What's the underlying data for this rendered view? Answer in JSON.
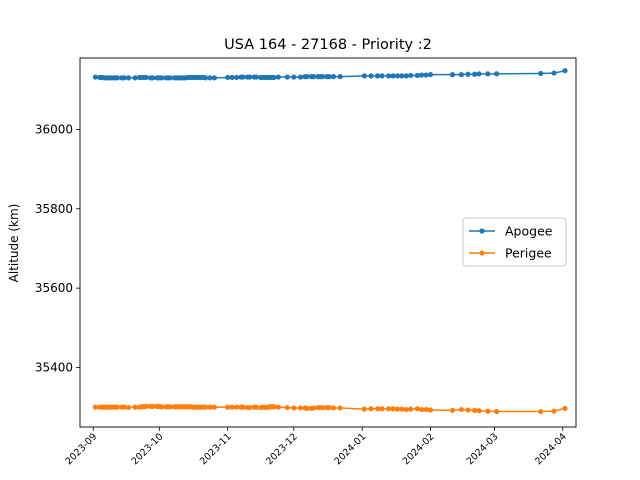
{
  "chart_data": {
    "type": "line",
    "title": "USA 164 - 27168 - Priority :2",
    "xlabel": "",
    "ylabel": "Altitude (km)",
    "xlim": [
      "2023-08-26",
      "2024-04-07"
    ],
    "ylim": [
      35250,
      36180
    ],
    "x_ticks": [
      "2023-09",
      "2023-10",
      "2023-11",
      "2023-12",
      "2024-01",
      "2024-02",
      "2024-03",
      "2024-04"
    ],
    "y_ticks": [
      35400,
      35600,
      35800,
      36000
    ],
    "grid": false,
    "legend_position": "center-right",
    "series": [
      {
        "name": "Apogee",
        "color": "#1f77b4",
        "points": [
          [
            "2023-09-02",
            36132
          ],
          [
            "2023-09-04",
            36131
          ],
          [
            "2023-09-05",
            36131
          ],
          [
            "2023-09-06",
            36130
          ],
          [
            "2023-09-07",
            36130
          ],
          [
            "2023-09-08",
            36130
          ],
          [
            "2023-09-09",
            36130
          ],
          [
            "2023-09-10",
            36130
          ],
          [
            "2023-09-11",
            36130
          ],
          [
            "2023-09-12",
            36130
          ],
          [
            "2023-09-14",
            36130
          ],
          [
            "2023-09-15",
            36130
          ],
          [
            "2023-09-17",
            36130
          ],
          [
            "2023-09-20",
            36130
          ],
          [
            "2023-09-22",
            36131
          ],
          [
            "2023-09-23",
            36131
          ],
          [
            "2023-09-24",
            36131
          ],
          [
            "2023-09-25",
            36131
          ],
          [
            "2023-09-27",
            36130
          ],
          [
            "2023-09-28",
            36130
          ],
          [
            "2023-09-30",
            36130
          ],
          [
            "2023-10-01",
            36130
          ],
          [
            "2023-10-02",
            36130
          ],
          [
            "2023-10-04",
            36130
          ],
          [
            "2023-10-05",
            36130
          ],
          [
            "2023-10-06",
            36130
          ],
          [
            "2023-10-08",
            36130
          ],
          [
            "2023-10-09",
            36130
          ],
          [
            "2023-10-10",
            36130
          ],
          [
            "2023-10-11",
            36130
          ],
          [
            "2023-10-12",
            36130
          ],
          [
            "2023-10-13",
            36130
          ],
          [
            "2023-10-14",
            36131
          ],
          [
            "2023-10-15",
            36131
          ],
          [
            "2023-10-16",
            36131
          ],
          [
            "2023-10-17",
            36131
          ],
          [
            "2023-10-18",
            36131
          ],
          [
            "2023-10-19",
            36131
          ],
          [
            "2023-10-20",
            36131
          ],
          [
            "2023-10-21",
            36131
          ],
          [
            "2023-10-22",
            36130
          ],
          [
            "2023-10-24",
            36130
          ],
          [
            "2023-10-26",
            36130
          ],
          [
            "2023-11-01",
            36131
          ],
          [
            "2023-11-03",
            36131
          ],
          [
            "2023-11-05",
            36131
          ],
          [
            "2023-11-07",
            36132
          ],
          [
            "2023-11-08",
            36132
          ],
          [
            "2023-11-10",
            36132
          ],
          [
            "2023-11-11",
            36132
          ],
          [
            "2023-11-13",
            36132
          ],
          [
            "2023-11-14",
            36132
          ],
          [
            "2023-11-16",
            36131
          ],
          [
            "2023-11-17",
            36131
          ],
          [
            "2023-11-18",
            36131
          ],
          [
            "2023-11-19",
            36131
          ],
          [
            "2023-11-20",
            36131
          ],
          [
            "2023-11-21",
            36131
          ],
          [
            "2023-11-22",
            36131
          ],
          [
            "2023-11-24",
            36132
          ],
          [
            "2023-11-28",
            36132
          ],
          [
            "2023-12-01",
            36132
          ],
          [
            "2023-12-04",
            36132
          ],
          [
            "2023-12-06",
            36133
          ],
          [
            "2023-12-07",
            36133
          ],
          [
            "2023-12-09",
            36133
          ],
          [
            "2023-12-10",
            36133
          ],
          [
            "2023-12-12",
            36133
          ],
          [
            "2023-12-13",
            36133
          ],
          [
            "2023-12-14",
            36133
          ],
          [
            "2023-12-16",
            36133
          ],
          [
            "2023-12-17",
            36133
          ],
          [
            "2023-12-19",
            36133
          ],
          [
            "2023-12-22",
            36133
          ],
          [
            "2024-01-02",
            36135
          ],
          [
            "2024-01-05",
            36135
          ],
          [
            "2024-01-08",
            36135
          ],
          [
            "2024-01-10",
            36135
          ],
          [
            "2024-01-13",
            36135
          ],
          [
            "2024-01-15",
            36135
          ],
          [
            "2024-01-17",
            36135
          ],
          [
            "2024-01-19",
            36135
          ],
          [
            "2024-01-21",
            36135
          ],
          [
            "2024-01-23",
            36136
          ],
          [
            "2024-01-26",
            36136
          ],
          [
            "2024-01-28",
            36137
          ],
          [
            "2024-01-30",
            36137
          ],
          [
            "2024-02-01",
            36138
          ],
          [
            "2024-02-11",
            36138
          ],
          [
            "2024-02-15",
            36138
          ],
          [
            "2024-02-18",
            36139
          ],
          [
            "2024-02-21",
            36139
          ],
          [
            "2024-02-23",
            36140
          ],
          [
            "2024-02-27",
            36140
          ],
          [
            "2024-03-02",
            36140
          ],
          [
            "2024-03-22",
            36141
          ],
          [
            "2024-03-28",
            36142
          ],
          [
            "2024-04-02",
            36148
          ]
        ]
      },
      {
        "name": "Perigee",
        "color": "#ff7f0e",
        "points": [
          [
            "2023-09-02",
            35300
          ],
          [
            "2023-09-04",
            35300
          ],
          [
            "2023-09-05",
            35300
          ],
          [
            "2023-09-06",
            35300
          ],
          [
            "2023-09-07",
            35300
          ],
          [
            "2023-09-08",
            35300
          ],
          [
            "2023-09-09",
            35300
          ],
          [
            "2023-09-10",
            35300
          ],
          [
            "2023-09-11",
            35300
          ],
          [
            "2023-09-12",
            35300
          ],
          [
            "2023-09-14",
            35300
          ],
          [
            "2023-09-15",
            35300
          ],
          [
            "2023-09-17",
            35299
          ],
          [
            "2023-09-20",
            35300
          ],
          [
            "2023-09-22",
            35300
          ],
          [
            "2023-09-23",
            35301
          ],
          [
            "2023-09-24",
            35301
          ],
          [
            "2023-09-25",
            35302
          ],
          [
            "2023-09-27",
            35302
          ],
          [
            "2023-09-28",
            35302
          ],
          [
            "2023-09-30",
            35302
          ],
          [
            "2023-10-01",
            35302
          ],
          [
            "2023-10-02",
            35301
          ],
          [
            "2023-10-04",
            35301
          ],
          [
            "2023-10-05",
            35301
          ],
          [
            "2023-10-06",
            35301
          ],
          [
            "2023-10-08",
            35301
          ],
          [
            "2023-10-09",
            35301
          ],
          [
            "2023-10-10",
            35301
          ],
          [
            "2023-10-11",
            35301
          ],
          [
            "2023-10-12",
            35301
          ],
          [
            "2023-10-13",
            35301
          ],
          [
            "2023-10-14",
            35301
          ],
          [
            "2023-10-15",
            35301
          ],
          [
            "2023-10-16",
            35300
          ],
          [
            "2023-10-17",
            35300
          ],
          [
            "2023-10-18",
            35300
          ],
          [
            "2023-10-19",
            35300
          ],
          [
            "2023-10-20",
            35300
          ],
          [
            "2023-10-21",
            35300
          ],
          [
            "2023-10-22",
            35300
          ],
          [
            "2023-10-24",
            35300
          ],
          [
            "2023-10-26",
            35300
          ],
          [
            "2023-11-01",
            35300
          ],
          [
            "2023-11-03",
            35300
          ],
          [
            "2023-11-05",
            35300
          ],
          [
            "2023-11-07",
            35300
          ],
          [
            "2023-11-08",
            35300
          ],
          [
            "2023-11-10",
            35299
          ],
          [
            "2023-11-11",
            35299
          ],
          [
            "2023-11-13",
            35300
          ],
          [
            "2023-11-14",
            35300
          ],
          [
            "2023-11-16",
            35299
          ],
          [
            "2023-11-17",
            35300
          ],
          [
            "2023-11-18",
            35300
          ],
          [
            "2023-11-19",
            35299
          ],
          [
            "2023-11-20",
            35301
          ],
          [
            "2023-11-21",
            35301
          ],
          [
            "2023-11-22",
            35301
          ],
          [
            "2023-11-24",
            35300
          ],
          [
            "2023-11-28",
            35299
          ],
          [
            "2023-12-01",
            35298
          ],
          [
            "2023-12-04",
            35298
          ],
          [
            "2023-12-06",
            35298
          ],
          [
            "2023-12-07",
            35297
          ],
          [
            "2023-12-09",
            35297
          ],
          [
            "2023-12-10",
            35298
          ],
          [
            "2023-12-12",
            35299
          ],
          [
            "2023-12-13",
            35299
          ],
          [
            "2023-12-14",
            35299
          ],
          [
            "2023-12-16",
            35299
          ],
          [
            "2023-12-17",
            35299
          ],
          [
            "2023-12-19",
            35298
          ],
          [
            "2023-12-22",
            35298
          ],
          [
            "2024-01-02",
            35295
          ],
          [
            "2024-01-05",
            35296
          ],
          [
            "2024-01-08",
            35296
          ],
          [
            "2024-01-10",
            35296
          ],
          [
            "2024-01-13",
            35296
          ],
          [
            "2024-01-15",
            35296
          ],
          [
            "2024-01-17",
            35295
          ],
          [
            "2024-01-19",
            35295
          ],
          [
            "2024-01-21",
            35294
          ],
          [
            "2024-01-23",
            35295
          ],
          [
            "2024-01-26",
            35296
          ],
          [
            "2024-01-28",
            35294
          ],
          [
            "2024-01-30",
            35294
          ],
          [
            "2024-02-01",
            35293
          ],
          [
            "2024-02-11",
            35292
          ],
          [
            "2024-02-15",
            35294
          ],
          [
            "2024-02-18",
            35293
          ],
          [
            "2024-02-21",
            35292
          ],
          [
            "2024-02-23",
            35291
          ],
          [
            "2024-02-27",
            35290
          ],
          [
            "2024-03-02",
            35289
          ],
          [
            "2024-03-22",
            35289
          ],
          [
            "2024-03-28",
            35290
          ],
          [
            "2024-04-02",
            35297
          ]
        ]
      }
    ]
  }
}
